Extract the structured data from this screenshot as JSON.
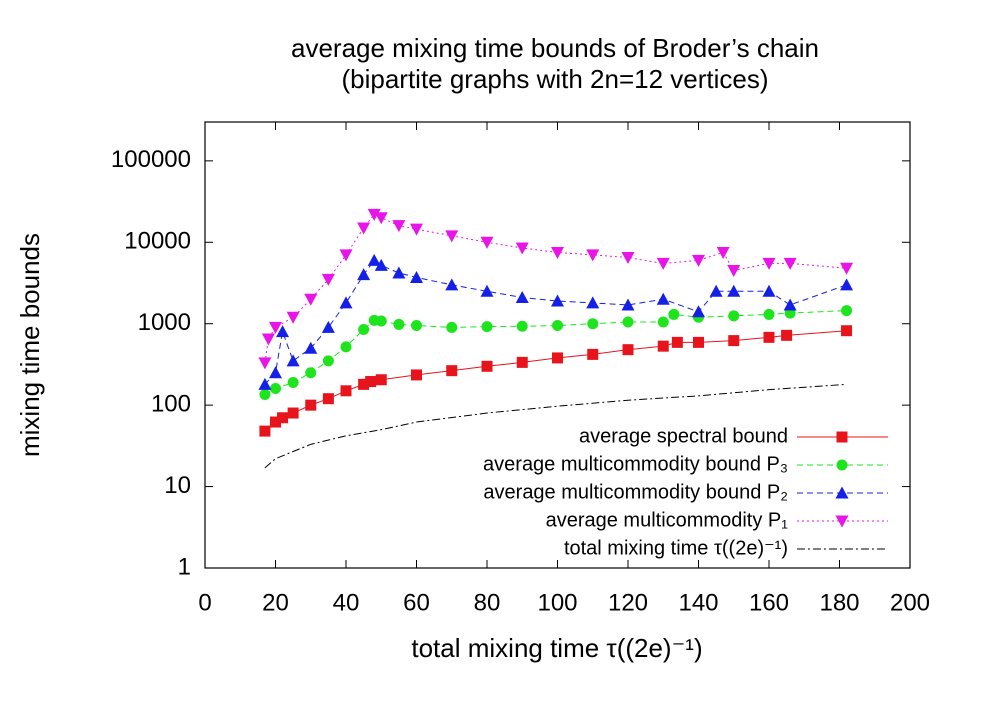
{
  "chart_data": {
    "type": "scatter",
    "title": "average mixing time bounds of Broder’s chain",
    "subtitle": "(bipartite graphs with 2n=12 vertices)",
    "x_label": "total mixing time τ((2e)⁻¹)",
    "y_label": "mixing time bounds",
    "xlim": [
      0,
      200
    ],
    "xticks": [
      0,
      20,
      40,
      60,
      80,
      100,
      120,
      140,
      160,
      180,
      200
    ],
    "ylim": [
      1,
      300000
    ],
    "yticks": [
      1,
      10,
      100,
      1000,
      10000,
      100000
    ],
    "log_y": true,
    "legend": "lower right",
    "series": [
      {
        "name": "average spectral bound",
        "color": "#e8141c",
        "marker": "square",
        "line": "solid",
        "x": [
          17,
          20,
          22,
          25,
          30,
          35,
          40,
          45,
          47,
          50,
          60,
          70,
          80,
          90,
          100,
          110,
          120,
          130,
          134,
          140,
          150,
          160,
          165,
          182
        ],
        "values": [
          48,
          62,
          70,
          80,
          100,
          120,
          150,
          180,
          195,
          205,
          235,
          265,
          300,
          335,
          380,
          420,
          480,
          530,
          590,
          590,
          620,
          680,
          720,
          820
        ]
      },
      {
        "name": "average multicommodity bound P₃",
        "color": "#1ee41e",
        "marker": "circle",
        "line": "dashed",
        "x": [
          17,
          20,
          25,
          30,
          35,
          40,
          45,
          48,
          50,
          55,
          60,
          70,
          80,
          90,
          100,
          110,
          120,
          130,
          133,
          140,
          150,
          160,
          166,
          182
        ],
        "values": [
          135,
          160,
          190,
          250,
          350,
          520,
          850,
          1100,
          1080,
          980,
          950,
          900,
          920,
          930,
          950,
          1000,
          1050,
          1050,
          1300,
          1200,
          1250,
          1300,
          1350,
          1450
        ]
      },
      {
        "name": "average multicommodity bound P₂",
        "color": "#1420e8",
        "marker": "triangle-up",
        "line": "dashed",
        "x": [
          17,
          20,
          22,
          25,
          30,
          35,
          40,
          45,
          48,
          50,
          55,
          60,
          70,
          80,
          90,
          100,
          110,
          120,
          130,
          140,
          145,
          150,
          160,
          166,
          182
        ],
        "values": [
          180,
          250,
          800,
          350,
          500,
          900,
          1800,
          4000,
          6000,
          5200,
          4200,
          3700,
          3000,
          2500,
          2100,
          1900,
          1800,
          1700,
          2000,
          1400,
          2500,
          2500,
          2500,
          1700,
          3000
        ]
      },
      {
        "name": "average multicommodity P₁",
        "color": "#e814e8",
        "marker": "triangle-down",
        "line": "dotted",
        "x": [
          17,
          18,
          20,
          25,
          30,
          35,
          40,
          45,
          48,
          50,
          55,
          60,
          70,
          80,
          90,
          100,
          110,
          120,
          130,
          140,
          147,
          150,
          160,
          166,
          182
        ],
        "values": [
          330,
          650,
          900,
          1200,
          2000,
          3500,
          7000,
          15000,
          22000,
          20000,
          16000,
          14500,
          12000,
          10000,
          8500,
          7500,
          7000,
          6500,
          5500,
          6000,
          7500,
          4500,
          5500,
          5500,
          4800
        ]
      },
      {
        "name": "total mixing time τ((2e)⁻¹)",
        "color": "#000000",
        "marker": "none",
        "line": "dashdot",
        "x": [
          17,
          20,
          30,
          40,
          50,
          60,
          80,
          100,
          120,
          140,
          160,
          182
        ],
        "values": [
          17,
          22,
          33,
          42,
          50,
          62,
          80,
          97,
          115,
          130,
          155,
          180
        ]
      }
    ]
  }
}
